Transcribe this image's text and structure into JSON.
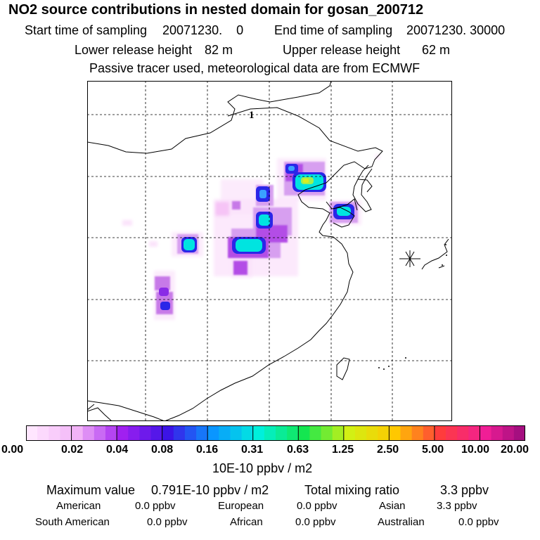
{
  "title": "NO2 source contributions in nested domain for gosan_200712",
  "sampling": {
    "start_label": "Start time of sampling",
    "start_value": "20071230.    0",
    "end_label": "End time of sampling",
    "end_value": "20071230. 30000"
  },
  "release": {
    "lower_label": "Lower release height",
    "lower_value": "82 m",
    "upper_label": "Upper release height",
    "upper_value": "62 m"
  },
  "note": "Passive tracer used, meteorological data are from ECMWF",
  "map": {
    "receptor_label": "1",
    "colors": {
      "coast": "#000000",
      "grid": "#000000"
    }
  },
  "colorbar": {
    "ticks": [
      "0.00",
      "0.02",
      "0.04",
      "0.08",
      "0.16",
      "0.31",
      "0.63",
      "1.25",
      "2.50",
      "5.00",
      "10.00",
      "20.00"
    ],
    "unit": "10E-10 ppbv / m2",
    "colors": [
      "#ffe6ff",
      "#f2b3f7",
      "#a020f0",
      "#3c14e6",
      "#0a96ff",
      "#00f0dc",
      "#14e650",
      "#d2f014",
      "#ffc800",
      "#ff3c3c",
      "#f01e96",
      "#8c0a78"
    ]
  },
  "stats": {
    "max_label": "Maximum value",
    "max_value": "0.791E-10 ppbv / m2",
    "total_label": "Total mixing ratio",
    "total_value": "3.3 ppbv",
    "regions": [
      {
        "name": "American",
        "value": "0.0 ppbv"
      },
      {
        "name": "European",
        "value": "0.0 ppbv"
      },
      {
        "name": "Asian",
        "value": "3.3 ppbv"
      },
      {
        "name": "South American",
        "value": "0.0 ppbv"
      },
      {
        "name": "African",
        "value": "0.0 ppbv"
      },
      {
        "name": "Australian",
        "value": "0.0 ppbv"
      }
    ]
  }
}
